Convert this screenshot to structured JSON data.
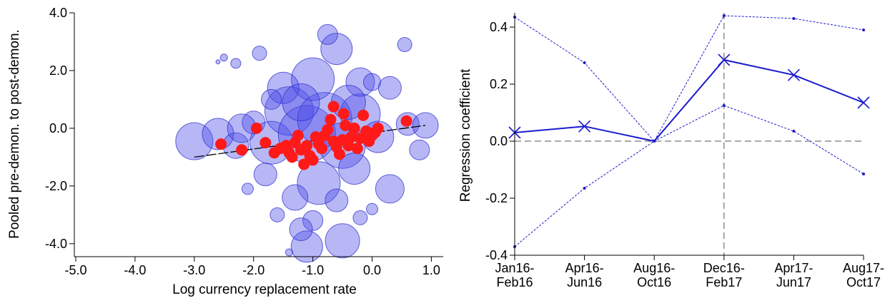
{
  "chart_data": [
    {
      "type": "scatter",
      "title": "",
      "xlabel": "Log currency replacement rate",
      "ylabel": "Pooled pre-demon. to post-demon.",
      "xlim": [
        -5.0,
        1.2
      ],
      "ylim": [
        -4.4,
        4.0
      ],
      "x_ticks": [
        -5.0,
        -4.0,
        -3.0,
        -2.0,
        -1.0,
        0.0,
        1.0
      ],
      "x_tick_labels": [
        "-5.0",
        "-4.0",
        "-3.0",
        "-2.0",
        "-1.0",
        "0.0",
        "1.0"
      ],
      "y_ticks": [
        -4.0,
        -2.0,
        0.0,
        2.0,
        4.0
      ],
      "y_tick_labels": [
        "-4.0",
        "-2.0",
        "0.0",
        "2.0",
        "4.0"
      ],
      "colors": {
        "bubbles": "#4a4ae8",
        "binned": "#ff1a1a",
        "fit": "#000000"
      },
      "bubbles": [
        {
          "x": -3.0,
          "y": -0.45,
          "r": 26
        },
        {
          "x": -2.6,
          "y": -0.2,
          "r": 22
        },
        {
          "x": -2.3,
          "y": -0.6,
          "r": 18
        },
        {
          "x": -2.0,
          "y": 0.2,
          "r": 16
        },
        {
          "x": -1.7,
          "y": -0.5,
          "r": 30
        },
        {
          "x": -1.4,
          "y": 0.6,
          "r": 34
        },
        {
          "x": -1.1,
          "y": -0.2,
          "r": 40
        },
        {
          "x": -0.8,
          "y": 0.3,
          "r": 38
        },
        {
          "x": -0.5,
          "y": -0.6,
          "r": 32
        },
        {
          "x": -0.2,
          "y": 0.5,
          "r": 28
        },
        {
          "x": 0.1,
          "y": -0.3,
          "r": 22
        },
        {
          "x": 0.6,
          "y": 0.15,
          "r": 16
        },
        {
          "x": 0.9,
          "y": 0.1,
          "r": 18
        },
        {
          "x": 0.8,
          "y": -0.75,
          "r": 14
        },
        {
          "x": -0.6,
          "y": 2.75,
          "r": 22
        },
        {
          "x": -0.75,
          "y": 3.25,
          "r": 14
        },
        {
          "x": 0.55,
          "y": 2.9,
          "r": 10
        },
        {
          "x": -1.0,
          "y": 1.7,
          "r": 30
        },
        {
          "x": -1.5,
          "y": 1.4,
          "r": 22
        },
        {
          "x": -0.2,
          "y": 1.6,
          "r": 20
        },
        {
          "x": 0.0,
          "y": 1.6,
          "r": 12
        },
        {
          "x": 0.3,
          "y": 1.4,
          "r": 16
        },
        {
          "x": -1.9,
          "y": 2.6,
          "r": 10
        },
        {
          "x": -2.3,
          "y": 2.25,
          "r": 7
        },
        {
          "x": -2.5,
          "y": 2.45,
          "r": 5
        },
        {
          "x": -2.6,
          "y": 2.3,
          "r": 3
        },
        {
          "x": -1.7,
          "y": 1.0,
          "r": 14
        },
        {
          "x": -0.9,
          "y": -1.9,
          "r": 30
        },
        {
          "x": -1.3,
          "y": -2.4,
          "r": 18
        },
        {
          "x": -0.6,
          "y": -2.5,
          "r": 16
        },
        {
          "x": -1.0,
          "y": -3.2,
          "r": 14
        },
        {
          "x": -0.5,
          "y": -3.9,
          "r": 24
        },
        {
          "x": -1.1,
          "y": -4.1,
          "r": 22
        },
        {
          "x": -1.2,
          "y": -3.5,
          "r": 16
        },
        {
          "x": -0.2,
          "y": -3.1,
          "r": 10
        },
        {
          "x": -1.6,
          "y": -3.0,
          "r": 10
        },
        {
          "x": -2.1,
          "y": -2.1,
          "r": 8
        },
        {
          "x": 0.3,
          "y": -2.1,
          "r": 20
        },
        {
          "x": 0.0,
          "y": -2.8,
          "r": 8
        },
        {
          "x": -1.4,
          "y": -4.3,
          "r": 5
        },
        {
          "x": -1.8,
          "y": -1.6,
          "r": 16
        },
        {
          "x": -0.3,
          "y": -1.4,
          "r": 22
        },
        {
          "x": -1.2,
          "y": 0.9,
          "r": 26
        },
        {
          "x": -0.4,
          "y": 0.9,
          "r": 24
        },
        {
          "x": -2.2,
          "y": 0.0,
          "r": 20
        }
      ],
      "binned_points": [
        {
          "x": -2.55,
          "y": -0.55
        },
        {
          "x": -2.2,
          "y": -0.75
        },
        {
          "x": -1.95,
          "y": 0.0
        },
        {
          "x": -1.8,
          "y": -0.5
        },
        {
          "x": -1.65,
          "y": -0.85
        },
        {
          "x": -1.55,
          "y": -0.7
        },
        {
          "x": -1.45,
          "y": -0.6
        },
        {
          "x": -1.4,
          "y": -0.85
        },
        {
          "x": -1.35,
          "y": -1.0
        },
        {
          "x": -1.3,
          "y": -0.5
        },
        {
          "x": -1.25,
          "y": -0.25
        },
        {
          "x": -1.2,
          "y": -0.75
        },
        {
          "x": -1.15,
          "y": -1.25
        },
        {
          "x": -1.1,
          "y": -0.6
        },
        {
          "x": -1.05,
          "y": -0.95
        },
        {
          "x": -1.0,
          "y": -1.1
        },
        {
          "x": -0.95,
          "y": -0.3
        },
        {
          "x": -0.9,
          "y": -0.55
        },
        {
          "x": -0.85,
          "y": -0.7
        },
        {
          "x": -0.8,
          "y": -0.25
        },
        {
          "x": -0.75,
          "y": -0.05
        },
        {
          "x": -0.7,
          "y": 0.3
        },
        {
          "x": -0.65,
          "y": -0.45
        },
        {
          "x": -0.6,
          "y": -0.65
        },
        {
          "x": -0.55,
          "y": -0.9
        },
        {
          "x": -0.5,
          "y": -0.4
        },
        {
          "x": -0.45,
          "y": 0.1
        },
        {
          "x": -0.4,
          "y": -0.6
        },
        {
          "x": -0.35,
          "y": -0.3
        },
        {
          "x": -0.3,
          "y": 0.0
        },
        {
          "x": -0.25,
          "y": -0.7
        },
        {
          "x": -0.2,
          "y": -0.35
        },
        {
          "x": -0.15,
          "y": 0.45
        },
        {
          "x": -0.1,
          "y": -0.1
        },
        {
          "x": -0.05,
          "y": -0.45
        },
        {
          "x": 0.0,
          "y": -0.25
        },
        {
          "x": 0.05,
          "y": -0.15
        },
        {
          "x": 0.1,
          "y": 0.0
        },
        {
          "x": 0.58,
          "y": 0.25
        },
        {
          "x": -0.65,
          "y": 0.75
        },
        {
          "x": -0.48,
          "y": 0.5
        }
      ],
      "fit_line": {
        "x": [
          -3.0,
          0.9
        ],
        "y": [
          -1.0,
          0.1
        ]
      }
    },
    {
      "type": "line",
      "title": "",
      "xlabel": "",
      "ylabel": "Regression coefficient",
      "categories": [
        "Jan16-Feb16",
        "Apr16-Jun16",
        "Aug16-Oct16",
        "Dec16-Feb17",
        "Apr17-Jun17",
        "Aug17-Oct17"
      ],
      "category_lines": [
        [
          "Jan16-",
          "Feb16"
        ],
        [
          "Apr16-",
          "Jun16"
        ],
        [
          "Aug16-",
          "Oct16"
        ],
        [
          "Dec16-",
          "Feb17"
        ],
        [
          "Apr17-",
          "Jun17"
        ],
        [
          "Aug17-",
          "Oct17"
        ]
      ],
      "ylim": [
        -0.4,
        0.45
      ],
      "y_ticks": [
        -0.4,
        -0.2,
        0.0,
        0.2,
        0.4
      ],
      "y_tick_labels": [
        "-0.4",
        "-0.2",
        "0.0",
        "0.2",
        "0.4"
      ],
      "colors": {
        "line": "#1a1acc",
        "reference": "#555555"
      },
      "series": [
        {
          "values": [
            0.03,
            0.052,
            0.0,
            0.285,
            0.232,
            0.135
          ]
        },
        {
          "values": [
            0.435,
            0.275,
            0.0,
            0.44,
            0.43,
            0.39
          ]
        },
        {
          "values": [
            -0.37,
            -0.165,
            0.0,
            0.125,
            0.035,
            -0.115
          ]
        }
      ],
      "reference_lines": {
        "y": 0.0,
        "x_category": "Dec16-Feb17"
      }
    }
  ]
}
